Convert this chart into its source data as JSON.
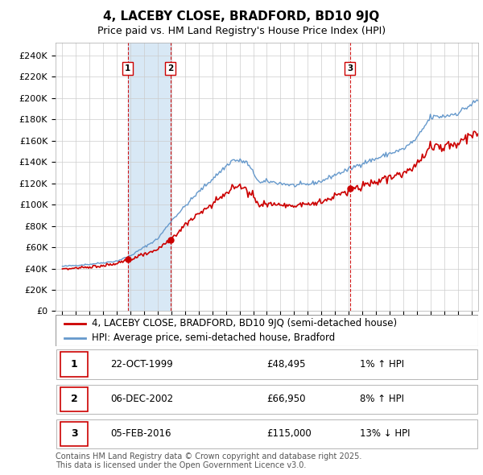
{
  "title": "4, LACEBY CLOSE, BRADFORD, BD10 9JQ",
  "subtitle": "Price paid vs. HM Land Registry's House Price Index (HPI)",
  "ylabel_ticks": [
    0,
    20000,
    40000,
    60000,
    80000,
    100000,
    120000,
    140000,
    160000,
    180000,
    200000,
    220000,
    240000
  ],
  "ylim": [
    0,
    252000
  ],
  "xlim_start": 1994.5,
  "xlim_end": 2025.5,
  "sale_dates": [
    1999.81,
    2002.92,
    2016.09
  ],
  "sale_prices": [
    48495,
    66950,
    115000
  ],
  "sale_labels": [
    "1",
    "2",
    "3"
  ],
  "sale_pct": [
    "1% ↑ HPI",
    "8% ↑ HPI",
    "13% ↓ HPI"
  ],
  "sale_display_dates": [
    "22-OCT-1999",
    "06-DEC-2002",
    "05-FEB-2016"
  ],
  "sale_display_prices": [
    "£48,495",
    "£66,950",
    "£115,000"
  ],
  "legend_line1": "4, LACEBY CLOSE, BRADFORD, BD10 9JQ (semi-detached house)",
  "legend_line2": "HPI: Average price, semi-detached house, Bradford",
  "legend_line1_color": "#cc0000",
  "legend_line2_color": "#6699cc",
  "highlight_fill_color": "#d8e8f5",
  "footnote": "Contains HM Land Registry data © Crown copyright and database right 2025.\nThis data is licensed under the Open Government Licence v3.0.",
  "grid_color": "#cccccc",
  "background_color": "#ffffff",
  "plot_bg_color": "#ffffff",
  "sale_vline_color": "#cc0000",
  "title_fontsize": 11,
  "subtitle_fontsize": 9,
  "tick_fontsize": 8,
  "legend_fontsize": 8.5,
  "footnote_fontsize": 7
}
